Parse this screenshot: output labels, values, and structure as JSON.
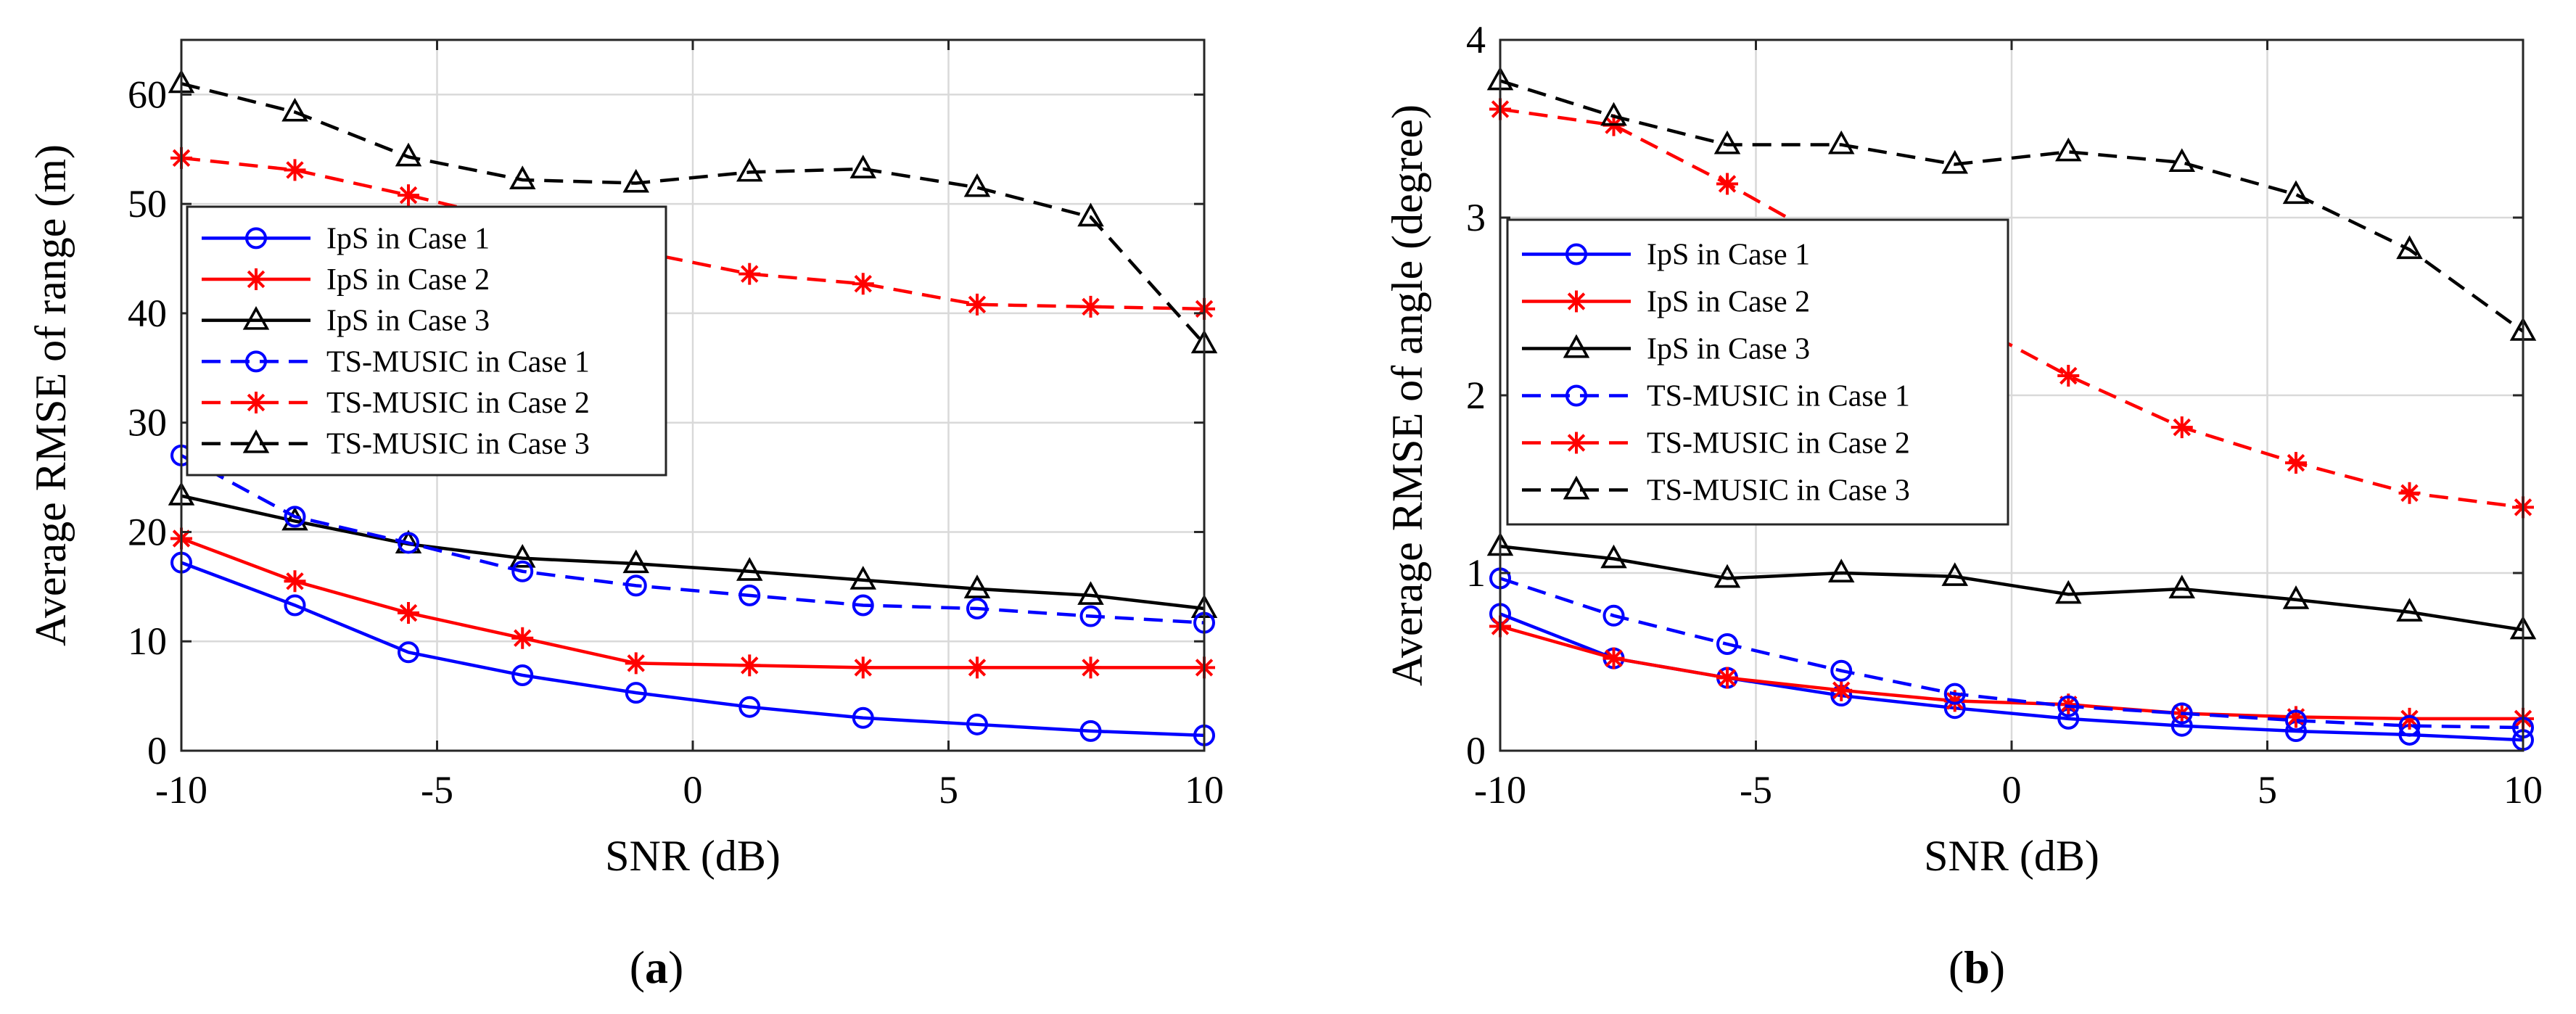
{
  "figure": {
    "panels": [
      {
        "caption_letter": "a",
        "xlabel": "SNR (dB)",
        "ylabel": "Average RMSE of range (m)"
      },
      {
        "caption_letter": "b",
        "xlabel": "SNR (dB)",
        "ylabel": "Average RMSE of angle (degree)"
      }
    ]
  },
  "colors": {
    "blue": "#0000ff",
    "red": "#ff0000",
    "black": "#000000",
    "grid": "#d9d9d9"
  },
  "chart_data": [
    {
      "type": "line",
      "title": "",
      "xlabel": "SNR (dB)",
      "ylabel": "Average RMSE of range (m)",
      "xlim": [
        -10,
        10
      ],
      "ylim": [
        0,
        65
      ],
      "xticks": [
        -10,
        -5,
        0,
        5,
        10
      ],
      "yticks": [
        0,
        10,
        20,
        30,
        40,
        50,
        60
      ],
      "grid": true,
      "legend_position": "left",
      "x": [
        -10,
        -7.78,
        -5.56,
        -3.33,
        -1.11,
        1.11,
        3.33,
        5.56,
        7.78,
        10
      ],
      "series": [
        {
          "name": "IpS in Case 1",
          "color": "blue",
          "dash": "solid",
          "marker": "circle",
          "values": [
            17.2,
            13.3,
            9.0,
            6.9,
            5.3,
            4.0,
            3.0,
            2.4,
            1.8,
            1.4
          ]
        },
        {
          "name": "IpS in Case 2",
          "color": "red",
          "dash": "solid",
          "marker": "asterisk",
          "values": [
            19.4,
            15.5,
            12.6,
            10.3,
            8.0,
            7.8,
            7.6,
            7.6,
            7.6,
            7.6
          ]
        },
        {
          "name": "IpS in Case 3",
          "color": "black",
          "dash": "solid",
          "marker": "triangle",
          "values": [
            23.3,
            21.0,
            18.9,
            17.6,
            17.1,
            16.4,
            15.6,
            14.8,
            14.2,
            13.0
          ]
        },
        {
          "name": "TS-MUSIC in Case 1",
          "color": "blue",
          "dash": "dashed",
          "marker": "circle",
          "values": [
            27.0,
            21.4,
            19.0,
            16.4,
            15.1,
            14.2,
            13.3,
            13.0,
            12.3,
            11.7
          ]
        },
        {
          "name": "TS-MUSIC in Case 2",
          "color": "red",
          "dash": "dashed",
          "marker": "asterisk",
          "values": [
            54.2,
            53.1,
            50.8,
            48.3,
            45.7,
            43.6,
            42.7,
            40.8,
            40.6,
            40.4
          ]
        },
        {
          "name": "TS-MUSIC in Case 3",
          "color": "black",
          "dash": "dashed",
          "marker": "triangle",
          "values": [
            61.0,
            58.4,
            54.3,
            52.2,
            51.9,
            52.9,
            53.2,
            51.5,
            48.8,
            37.2
          ]
        }
      ]
    },
    {
      "type": "line",
      "title": "",
      "xlabel": "SNR (dB)",
      "ylabel": "Average RMSE of angle (degree)",
      "xlim": [
        -10,
        10
      ],
      "ylim": [
        0,
        4
      ],
      "xticks": [
        -10,
        -5,
        0,
        5,
        10
      ],
      "yticks": [
        0,
        1,
        2,
        3,
        4
      ],
      "grid": true,
      "legend_position": "left",
      "x": [
        -10,
        -7.78,
        -5.56,
        -3.33,
        -1.11,
        1.11,
        3.33,
        5.56,
        7.78,
        10
      ],
      "series": [
        {
          "name": "IpS in Case 1",
          "color": "blue",
          "dash": "solid",
          "marker": "circle",
          "values": [
            0.77,
            0.52,
            0.41,
            0.31,
            0.24,
            0.18,
            0.14,
            0.11,
            0.09,
            0.06
          ]
        },
        {
          "name": "IpS in Case 2",
          "color": "red",
          "dash": "solid",
          "marker": "asterisk",
          "values": [
            0.7,
            0.52,
            0.41,
            0.34,
            0.28,
            0.26,
            0.21,
            0.19,
            0.18,
            0.18
          ]
        },
        {
          "name": "IpS in Case 3",
          "color": "black",
          "dash": "solid",
          "marker": "triangle",
          "values": [
            1.15,
            1.08,
            0.97,
            1.0,
            0.98,
            0.88,
            0.91,
            0.85,
            0.78,
            0.68
          ]
        },
        {
          "name": "TS-MUSIC in Case 1",
          "color": "blue",
          "dash": "dashed",
          "marker": "circle",
          "values": [
            0.97,
            0.76,
            0.6,
            0.45,
            0.32,
            0.25,
            0.21,
            0.17,
            0.14,
            0.13
          ]
        },
        {
          "name": "TS-MUSIC in Case 2",
          "color": "red",
          "dash": "dashed",
          "marker": "asterisk",
          "values": [
            3.61,
            3.52,
            3.19,
            2.83,
            2.45,
            2.11,
            1.82,
            1.62,
            1.45,
            1.37
          ]
        },
        {
          "name": "TS-MUSIC in Case 3",
          "color": "black",
          "dash": "dashed",
          "marker": "triangle",
          "values": [
            3.77,
            3.57,
            3.41,
            3.41,
            3.3,
            3.37,
            3.31,
            3.13,
            2.82,
            2.36
          ]
        }
      ]
    }
  ]
}
